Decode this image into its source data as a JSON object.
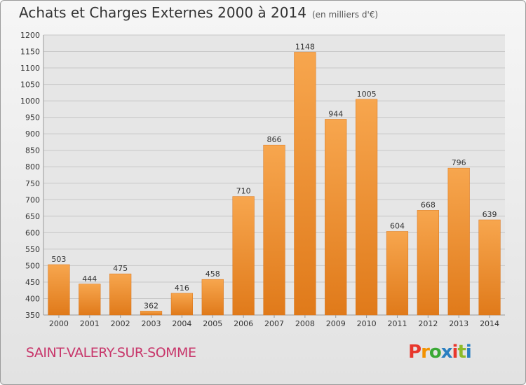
{
  "header": {
    "title": "Achats et Charges Externes 2000 à 2014",
    "unit": "(en milliers d'€)"
  },
  "footer": {
    "place": "SAINT-VALERY-SUR-SOMME",
    "logo": "Proxiti"
  },
  "colors": {
    "bar_light": "#f7a64e",
    "bar_dark": "#e07a1a",
    "logo": [
      "#e8372c",
      "#f39200",
      "#3aa935",
      "#2a7fc1",
      "#e8372c",
      "#8dbb2a",
      "#2a7fc1"
    ]
  },
  "chart_data": {
    "type": "bar",
    "title": "Achats et Charges Externes 2000 à 2014",
    "xlabel": "",
    "ylabel": "",
    "categories": [
      "2000",
      "2001",
      "2002",
      "2003",
      "2004",
      "2005",
      "2006",
      "2007",
      "2008",
      "2009",
      "2010",
      "2011",
      "2012",
      "2013",
      "2014"
    ],
    "values": [
      503,
      444,
      475,
      362,
      416,
      458,
      710,
      866,
      1148,
      944,
      1005,
      604,
      668,
      796,
      639
    ],
    "ylim": [
      350,
      1200
    ],
    "yticks": [
      350,
      400,
      450,
      500,
      550,
      600,
      650,
      700,
      750,
      800,
      850,
      900,
      950,
      1000,
      1050,
      1100,
      1150,
      1200
    ],
    "grid": true
  }
}
